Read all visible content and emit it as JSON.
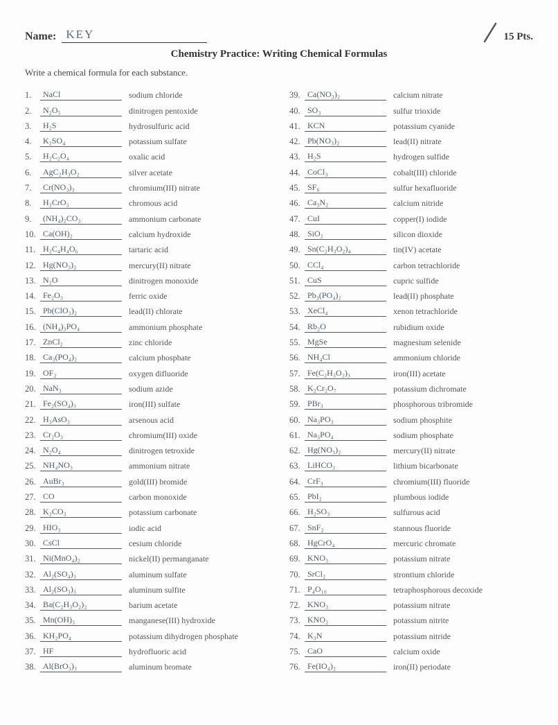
{
  "header": {
    "name_label": "Name:",
    "name_value": "KEY",
    "points_label": "15 Pts."
  },
  "title": "Chemistry Practice: Writing Chemical Formulas",
  "instruction": "Write a chemical formula for each substance.",
  "slash_color": "#555",
  "left": [
    {
      "n": "1.",
      "a": "NaCl",
      "c": "sodium chloride"
    },
    {
      "n": "2.",
      "a": "N₂O₅",
      "c": "dinitrogen pentoxide"
    },
    {
      "n": "3.",
      "a": "H₂S",
      "c": "hydrosulfuric acid"
    },
    {
      "n": "4.",
      "a": "K₂SO₄",
      "c": "potassium sulfate"
    },
    {
      "n": "5.",
      "a": "H₂C₂O₄",
      "c": "oxalic acid"
    },
    {
      "n": "6.",
      "a": "AgC₂H₃O₂",
      "c": "silver acetate"
    },
    {
      "n": "7.",
      "a": "Cr(NO₃)₃",
      "c": "chromium(III) nitrate"
    },
    {
      "n": "8.",
      "a": "H₂CrO₃",
      "c": "chromous acid"
    },
    {
      "n": "9.",
      "a": "(NH₄)₂CO₃",
      "c": "ammonium carbonate"
    },
    {
      "n": "10.",
      "a": "Ca(OH)₂",
      "c": "calcium hydroxide"
    },
    {
      "n": "11.",
      "a": "H₂C₄H₄O₆",
      "c": "tartaric acid"
    },
    {
      "n": "12.",
      "a": "Hg(NO₃)₂",
      "c": "mercury(II) nitrate"
    },
    {
      "n": "13.",
      "a": "N₂O",
      "c": "dinitrogen monoxide"
    },
    {
      "n": "14.",
      "a": "Fe₂O₃",
      "c": "ferric oxide"
    },
    {
      "n": "15.",
      "a": "Pb(ClO₃)₂",
      "c": "lead(II) chlorate"
    },
    {
      "n": "16.",
      "a": "(NH₄)₃PO₄",
      "c": "ammonium phosphate"
    },
    {
      "n": "17.",
      "a": "ZnCl₂",
      "c": "zinc chloride"
    },
    {
      "n": "18.",
      "a": "Ca₃(PO₄)₂",
      "c": "calcium phosphate"
    },
    {
      "n": "19.",
      "a": "OF₂",
      "c": "oxygen difluoride"
    },
    {
      "n": "20.",
      "a": "NaN₃",
      "c": "sodium azide"
    },
    {
      "n": "21.",
      "a": "Fe₂(SO₄)₃",
      "c": "iron(III) sulfate"
    },
    {
      "n": "22.",
      "a": "H₃AsO₃",
      "c": "arsenous acid"
    },
    {
      "n": "23.",
      "a": "Cr₂O₃",
      "c": "chromium(III) oxide"
    },
    {
      "n": "24.",
      "a": "N₂O₄",
      "c": "dinitrogen tetroxide"
    },
    {
      "n": "25.",
      "a": "NH₄NO₃",
      "c": "ammonium nitrate"
    },
    {
      "n": "26.",
      "a": "AuBr₃",
      "c": "gold(III) bromide"
    },
    {
      "n": "27.",
      "a": "CO",
      "c": "carbon monoxide"
    },
    {
      "n": "28.",
      "a": "K₂CO₃",
      "c": "potassium carbonate"
    },
    {
      "n": "29.",
      "a": "HIO₃",
      "c": "iodic acid"
    },
    {
      "n": "30.",
      "a": "CsCl",
      "c": "cesium chloride"
    },
    {
      "n": "31.",
      "a": "Ni(MnO₄)₂",
      "c": "nickel(II) permanganate"
    },
    {
      "n": "32.",
      "a": "Al₂(SO₄)₃",
      "c": "aluminum sulfate"
    },
    {
      "n": "33.",
      "a": "Al₂(SO₃)₃",
      "c": "aluminum sulfite"
    },
    {
      "n": "34.",
      "a": "Ba(C₂H₃O₂)₂",
      "c": "barium acetate"
    },
    {
      "n": "35.",
      "a": "Mn(OH)₃",
      "c": "manganese(III) hydroxide"
    },
    {
      "n": "36.",
      "a": "KH₂PO₄",
      "c": "potassium dihydrogen phosphate"
    },
    {
      "n": "37.",
      "a": "HF",
      "c": "hydrofluoric acid"
    },
    {
      "n": "38.",
      "a": "Al(BrO₃)₃",
      "c": "aluminum bromate"
    }
  ],
  "right": [
    {
      "n": "39.",
      "a": "Ca(NO₃)₂",
      "c": "calcium nitrate"
    },
    {
      "n": "40.",
      "a": "SO₃",
      "c": "sulfur trioxide"
    },
    {
      "n": "41.",
      "a": "KCN",
      "c": "potassium cyanide"
    },
    {
      "n": "42.",
      "a": "Pb(NO₃)₂",
      "c": "lead(II) nitrate"
    },
    {
      "n": "43.",
      "a": "H₂S",
      "c": "hydrogen sulfide"
    },
    {
      "n": "44.",
      "a": "CoCl₃",
      "c": "cobalt(III) chloride"
    },
    {
      "n": "45.",
      "a": "SF₆",
      "c": "sulfur hexafluoride"
    },
    {
      "n": "46.",
      "a": "Ca₃N₂",
      "c": "calcium nitride"
    },
    {
      "n": "47.",
      "a": "CuI",
      "c": "copper(I) iodide"
    },
    {
      "n": "48.",
      "a": "SiO₂",
      "c": "silicon dioxide"
    },
    {
      "n": "49.",
      "a": "Sn(C₂H₃O₂)₄",
      "c": "tin(IV) acetate"
    },
    {
      "n": "50.",
      "a": "CCl₄",
      "c": "carbon tetrachloride"
    },
    {
      "n": "51.",
      "a": "CuS",
      "c": "cupric sulfide"
    },
    {
      "n": "52.",
      "a": "Pb₃(PO₄)₂",
      "c": "lead(II) phosphate"
    },
    {
      "n": "53.",
      "a": "XeCl₄",
      "c": "xenon tetrachloride"
    },
    {
      "n": "54.",
      "a": "Rb₂O",
      "c": "rubidium oxide"
    },
    {
      "n": "55.",
      "a": "MgSe",
      "c": "magnesium selenide"
    },
    {
      "n": "56.",
      "a": "NH₄Cl",
      "c": "ammonium chloride"
    },
    {
      "n": "57.",
      "a": "Fe(C₂H₃O₂)₃",
      "c": "iron(III) acetate"
    },
    {
      "n": "58.",
      "a": "K₂Cr₂O₇",
      "c": "potassium dichromate"
    },
    {
      "n": "59.",
      "a": "PBr₃",
      "c": "phosphorous tribromide"
    },
    {
      "n": "60.",
      "a": "Na₃PO₃",
      "c": "sodium phosphite"
    },
    {
      "n": "61.",
      "a": "Na₃PO₄",
      "c": "sodium phosphate"
    },
    {
      "n": "62.",
      "a": "Hg(NO₃)₂",
      "c": "mercury(II) nitrate"
    },
    {
      "n": "63.",
      "a": "LiHCO₃",
      "c": "lithium bicarbonate"
    },
    {
      "n": "64.",
      "a": "CrF₃",
      "c": "chromium(III) fluoride"
    },
    {
      "n": "65.",
      "a": "PbI₂",
      "c": "plumbous iodide"
    },
    {
      "n": "66.",
      "a": "H₂SO₃",
      "c": "sulfurous acid"
    },
    {
      "n": "67.",
      "a": "SnF₂",
      "c": "stannous fluoride"
    },
    {
      "n": "68.",
      "a": "HgCrO₄",
      "c": "mercuric chromate"
    },
    {
      "n": "69.",
      "a": "KNO₃",
      "c": "potassium nitrate"
    },
    {
      "n": "70.",
      "a": "SrCl₂",
      "c": "strontium chloride"
    },
    {
      "n": "71.",
      "a": "P₄O₁₀",
      "c": "tetraphosphorous decoxide"
    },
    {
      "n": "72.",
      "a": "KNO₃",
      "c": "potassium nitrate"
    },
    {
      "n": "73.",
      "a": "KNO₂",
      "c": "potassium nitrite"
    },
    {
      "n": "74.",
      "a": "K₃N",
      "c": "potassium nitride"
    },
    {
      "n": "75.",
      "a": "CaO",
      "c": "calcium oxide"
    },
    {
      "n": "76.",
      "a": "Fe(IO₄)₂",
      "c": "iron(II) periodate"
    }
  ]
}
